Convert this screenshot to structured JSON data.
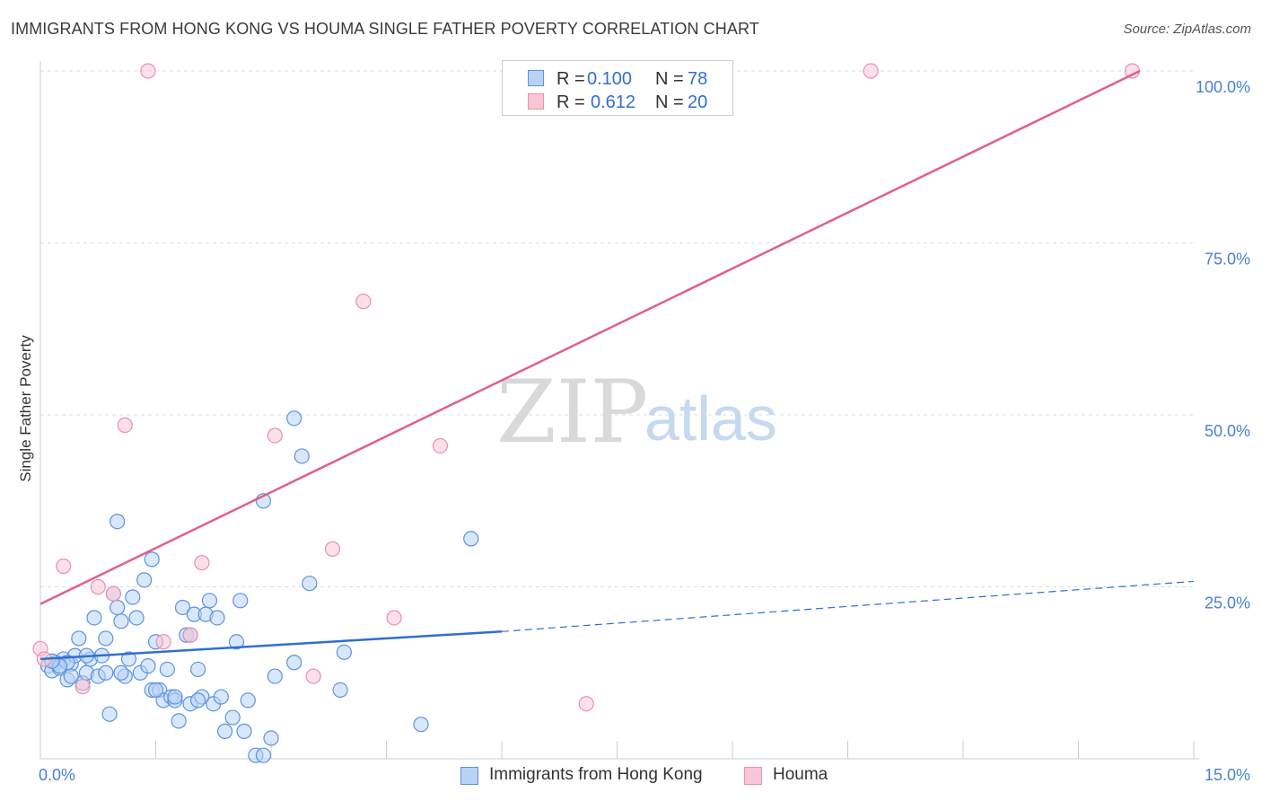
{
  "title": "IMMIGRANTS FROM HONG KONG VS HOUMA SINGLE FATHER POVERTY CORRELATION CHART",
  "source": "Source: ZipAtlas.com",
  "watermark": {
    "zip": "ZIP",
    "atlas": "atlas"
  },
  "legend": {
    "rows": [
      {
        "r_label": "R =",
        "r_value": "0.100",
        "n_label": "N =",
        "n_value": "78"
      },
      {
        "r_label": "R =",
        "r_value": "0.612",
        "n_label": "N =",
        "n_value": "20"
      }
    ]
  },
  "colors": {
    "blue_fill": "#b9d3f5",
    "blue_stroke": "#5b93dd",
    "blue_line": "#2f6fd0",
    "pink_fill": "#f9c6d6",
    "pink_stroke": "#e891ad",
    "pink_line": "#e0608a",
    "tick_text": "#4a7fd4",
    "grid": "#dddddd"
  },
  "chart_data": {
    "type": "scatter",
    "title": "IMMIGRANTS FROM HONG KONG VS HOUMA SINGLE FATHER POVERTY CORRELATION CHART",
    "xlabel": "",
    "ylabel": "Single Father Poverty",
    "xlim": [
      0,
      15
    ],
    "ylim": [
      0,
      100
    ],
    "x_tick_labels": [
      "0.0%",
      "15.0%"
    ],
    "y_tick_labels": [
      "100.0%",
      "75.0%",
      "50.0%",
      "25.0%"
    ],
    "y_tick_values": [
      100,
      75,
      50,
      25
    ],
    "grid": true,
    "series": [
      {
        "name": "Immigrants from Hong Kong",
        "color": "#5b93dd",
        "trend": {
          "x0": 0,
          "y0": 14.5,
          "x1": 6,
          "y1": 18.5,
          "dashed_to_x": 15,
          "dashed_to_y": 25.8
        },
        "points": [
          [
            0.1,
            13.5
          ],
          [
            0.15,
            12.8
          ],
          [
            0.2,
            14
          ],
          [
            0.25,
            13.2
          ],
          [
            0.3,
            14.5
          ],
          [
            0.35,
            11.5
          ],
          [
            0.4,
            13.8
          ],
          [
            0.45,
            15
          ],
          [
            0.5,
            17.5
          ],
          [
            0.55,
            11
          ],
          [
            0.6,
            12.5
          ],
          [
            0.65,
            14.5
          ],
          [
            0.7,
            20.5
          ],
          [
            0.75,
            12
          ],
          [
            0.8,
            15
          ],
          [
            0.85,
            12.5
          ],
          [
            0.9,
            6.5
          ],
          [
            0.95,
            24
          ],
          [
            1.0,
            22
          ],
          [
            1.05,
            20
          ],
          [
            1.1,
            12
          ],
          [
            1.15,
            14.5
          ],
          [
            1.2,
            23.5
          ],
          [
            1.25,
            20.5
          ],
          [
            1.3,
            12.5
          ],
          [
            1.35,
            26
          ],
          [
            1.4,
            13.5
          ],
          [
            1.45,
            10
          ],
          [
            1.5,
            17
          ],
          [
            1.55,
            10
          ],
          [
            1.6,
            8.5
          ],
          [
            1.65,
            13
          ],
          [
            1.7,
            9
          ],
          [
            1.75,
            8.5
          ],
          [
            1.8,
            5.5
          ],
          [
            1.85,
            22
          ],
          [
            1.9,
            18
          ],
          [
            1.95,
            8
          ],
          [
            2.0,
            21
          ],
          [
            2.05,
            13
          ],
          [
            2.1,
            9
          ],
          [
            2.15,
            21
          ],
          [
            2.2,
            23
          ],
          [
            2.25,
            8
          ],
          [
            2.3,
            20.5
          ],
          [
            2.4,
            4
          ],
          [
            2.5,
            6
          ],
          [
            2.55,
            17
          ],
          [
            2.6,
            23
          ],
          [
            2.65,
            4
          ],
          [
            2.7,
            8.5
          ],
          [
            2.8,
            0.5
          ],
          [
            2.9,
            0.5
          ],
          [
            3.0,
            3
          ],
          [
            3.05,
            12
          ],
          [
            3.3,
            14
          ],
          [
            3.5,
            25.5
          ],
          [
            3.9,
            10
          ],
          [
            3.95,
            15.5
          ],
          [
            4.95,
            5
          ],
          [
            5.6,
            32
          ],
          [
            3.3,
            49.5
          ],
          [
            3.4,
            44
          ],
          [
            2.9,
            37.5
          ],
          [
            1.0,
            34.5
          ],
          [
            1.45,
            29
          ],
          [
            1.95,
            18
          ],
          [
            2.35,
            9
          ],
          [
            0.85,
            17.5
          ],
          [
            0.6,
            15
          ],
          [
            0.35,
            14
          ],
          [
            0.25,
            13.5
          ],
          [
            0.15,
            14.2
          ],
          [
            0.4,
            12
          ],
          [
            1.05,
            12.5
          ],
          [
            1.5,
            10
          ],
          [
            1.75,
            9
          ],
          [
            2.05,
            8.5
          ]
        ]
      },
      {
        "name": "Houma",
        "color": "#e891ad",
        "trend": {
          "x0": 0,
          "y0": 22.5,
          "x1": 14.3,
          "y1": 100
        },
        "points": [
          [
            0.0,
            16
          ],
          [
            0.05,
            14.5
          ],
          [
            0.3,
            28
          ],
          [
            0.55,
            10.5
          ],
          [
            0.75,
            25
          ],
          [
            0.95,
            24
          ],
          [
            1.1,
            48.5
          ],
          [
            1.4,
            100
          ],
          [
            1.6,
            17
          ],
          [
            1.95,
            18
          ],
          [
            2.1,
            28.5
          ],
          [
            3.05,
            47
          ],
          [
            3.55,
            12
          ],
          [
            3.8,
            30.5
          ],
          [
            4.2,
            66.5
          ],
          [
            4.6,
            20.5
          ],
          [
            5.2,
            45.5
          ],
          [
            7.1,
            8
          ],
          [
            10.8,
            100
          ],
          [
            14.2,
            100
          ]
        ]
      }
    ]
  },
  "bottom_legend": [
    {
      "label": "Immigrants from Hong Kong"
    },
    {
      "label": "Houma"
    }
  ]
}
